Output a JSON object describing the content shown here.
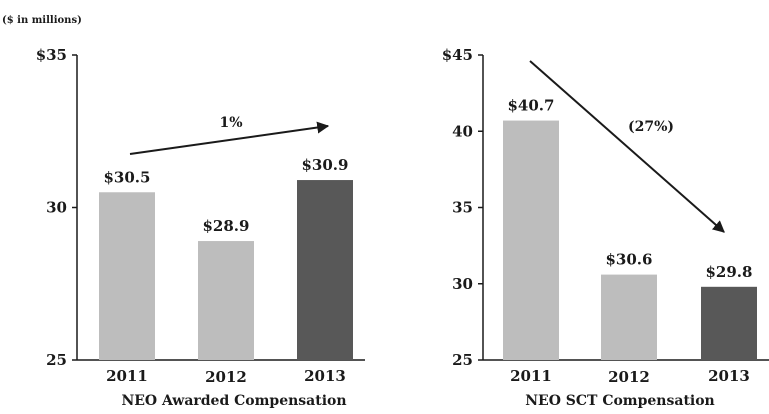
{
  "unit_note": "($ in millions)",
  "chart_data": [
    {
      "type": "bar",
      "xlabel": "NEO Awarded Compensation",
      "categories": [
        "2011",
        "2012",
        "2013"
      ],
      "values": [
        30.5,
        28.9,
        30.9
      ],
      "data_labels": [
        "$30.5",
        "$28.9",
        "$30.9"
      ],
      "ylim": [
        25,
        35
      ],
      "y_ticks": [
        25,
        30,
        35
      ],
      "y_tick_labels": [
        "25",
        "30",
        "$35"
      ],
      "bar_colors": [
        "#bdbdbd",
        "#bdbdbd",
        "#585858"
      ],
      "annotation": "1%",
      "trend": "up",
      "grid": false
    },
    {
      "type": "bar",
      "xlabel": "NEO SCT Compensation",
      "categories": [
        "2011",
        "2012",
        "2013"
      ],
      "values": [
        40.7,
        30.6,
        29.8
      ],
      "data_labels": [
        "$40.7",
        "$30.6",
        "$29.8"
      ],
      "ylim": [
        25,
        45
      ],
      "y_ticks": [
        25,
        30,
        35,
        40,
        45
      ],
      "y_tick_labels": [
        "25",
        "30",
        "35",
        "40",
        "$45"
      ],
      "bar_colors": [
        "#bdbdbd",
        "#bdbdbd",
        "#585858"
      ],
      "annotation": "(27%)",
      "trend": "down",
      "grid": false
    }
  ]
}
